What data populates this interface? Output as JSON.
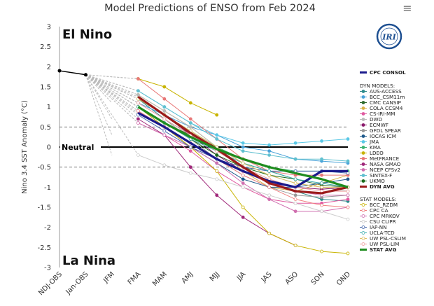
{
  "header": {
    "title": "Model Predictions of ENSO from Feb 2024",
    "menu_icon": "hamburger-menu-icon"
  },
  "logo_text": "IRI",
  "chart_data": {
    "type": "line",
    "title": "Model Predictions of ENSO from Feb 2024",
    "ylabel": "Nino 3.4 SST Anomaly (°C)",
    "xlabel": "",
    "categories": [
      "NDJ-OBS",
      "Jan-OBS",
      "JFM",
      "FMA",
      "MAM",
      "AMJ",
      "MJJ",
      "JJA",
      "JAS",
      "ASO",
      "SON",
      "OND"
    ],
    "ylim": [
      -3,
      3
    ],
    "yticks": [
      "3",
      "2.5",
      "2",
      "1.5",
      "1",
      "0.5",
      "0",
      "-0.5",
      "-1",
      "-1.5",
      "-2",
      "-2.5",
      "-3"
    ],
    "annotations": {
      "el_nino": "El Nino",
      "la_nina": "La Nina",
      "neutral": "Neutral"
    },
    "observed": [
      {
        "x": "NDJ-OBS",
        "y": 1.9
      },
      {
        "x": "Jan-OBS",
        "y": 1.8
      }
    ],
    "legend_headers": {
      "dyn": "DYN MODELS:",
      "stat": "STAT MODELS:"
    },
    "series": [
      {
        "name": "CPC CONSOL",
        "group": "consol",
        "color": "#1a1a8c",
        "style": "thick",
        "values": [
          null,
          null,
          null,
          0.85,
          0.5,
          0.1,
          -0.3,
          -0.6,
          -0.85,
          -1.0,
          -0.6,
          -0.6
        ]
      },
      {
        "name": "AUS-ACCESS",
        "group": "dyn",
        "color": "#2e8b8b",
        "values": [
          null,
          null,
          null,
          1.2,
          0.7,
          0.3,
          0.0,
          -0.5,
          -0.9,
          -1.1,
          -1.3,
          -1.35
        ]
      },
      {
        "name": "BCC_CSM11m",
        "group": "dyn",
        "color": "#4aa3d9",
        "values": [
          null,
          null,
          null,
          1.1,
          0.8,
          0.5,
          0.3,
          0.0,
          -0.1,
          -0.3,
          -0.35,
          -0.4
        ]
      },
      {
        "name": "CMC CANSIP",
        "group": "dyn",
        "color": "#2d6a2d",
        "values": [
          null,
          null,
          null,
          1.0,
          0.6,
          0.3,
          0.0,
          -0.4,
          -0.6,
          -0.8,
          -0.95,
          -1.0
        ]
      },
      {
        "name": "COLA CCSM4",
        "group": "dyn",
        "color": "#d9b24a",
        "values": [
          null,
          null,
          null,
          1.3,
          0.9,
          0.5,
          0.0,
          -0.6,
          -1.0,
          -1.1,
          -0.9,
          -0.7
        ]
      },
      {
        "name": "CS-IRI-MM",
        "group": "dyn",
        "color": "#e05aa0",
        "values": [
          null,
          null,
          null,
          0.6,
          0.3,
          -0.1,
          -0.6,
          -1.0,
          -1.3,
          -1.4,
          -1.4,
          -1.3
        ]
      },
      {
        "name": "DWD",
        "group": "dyn",
        "color": "#bbbbbb",
        "values": [
          null,
          null,
          null,
          1.3,
          0.9,
          0.5,
          0.0,
          -0.4,
          -0.7,
          -0.9,
          -1.0,
          -1.1
        ]
      },
      {
        "name": "ECMWF",
        "group": "dyn",
        "color": "#8b1a6b",
        "values": [
          null,
          null,
          null,
          1.2,
          0.8,
          0.3,
          -0.2,
          -0.6,
          -0.9,
          -1.0,
          -1.05,
          -1.0
        ]
      },
      {
        "name": "GFDL SPEAR",
        "group": "dyn",
        "color": "#999999",
        "values": [
          null,
          null,
          null,
          1.1,
          0.7,
          0.2,
          -0.3,
          -0.7,
          -1.0,
          -1.2,
          -1.25,
          -1.2
        ]
      },
      {
        "name": "IOCAS ICM",
        "group": "dyn",
        "color": "#1f5a8c",
        "values": [
          null,
          null,
          null,
          1.0,
          0.5,
          0.0,
          -0.4,
          -0.8,
          -1.0,
          -1.0,
          -0.9,
          -0.8
        ]
      },
      {
        "name": "JMA",
        "group": "dyn",
        "color": "#5ac8e6",
        "values": [
          null,
          null,
          null,
          1.4,
          1.0,
          0.6,
          0.3,
          0.1,
          0.05,
          0.1,
          0.15,
          0.2
        ]
      },
      {
        "name": "KMA",
        "group": "dyn",
        "color": "#3cb371",
        "values": [
          null,
          null,
          null,
          1.2,
          0.8,
          0.4,
          0.0,
          -0.3,
          -0.5,
          -0.6,
          -0.6,
          -0.6
        ]
      },
      {
        "name": "LDEO",
        "group": "dyn",
        "color": "#c8b400",
        "values": [
          null,
          null,
          null,
          1.7,
          1.5,
          1.1,
          0.8,
          null,
          null,
          null,
          null,
          null
        ]
      },
      {
        "name": "MetFRANCE",
        "group": "dyn",
        "color": "#e87878",
        "values": [
          null,
          null,
          null,
          1.7,
          1.2,
          0.7,
          0.2,
          -0.3,
          -0.6,
          -0.7,
          -0.7,
          -0.7
        ]
      },
      {
        "name": "NASA GMAO",
        "group": "dyn",
        "color": "#a0287a",
        "values": [
          null,
          null,
          null,
          0.7,
          0.3,
          -0.5,
          -1.2,
          -1.75,
          -2.15,
          -2.45,
          null,
          null
        ]
      },
      {
        "name": "NCEP CFSv2",
        "group": "dyn",
        "color": "#d070b0",
        "values": [
          null,
          null,
          null,
          0.9,
          0.5,
          0.0,
          -0.4,
          -0.9,
          -1.3,
          -1.6,
          -1.6,
          -1.5
        ]
      },
      {
        "name": "SINTEX-F",
        "group": "dyn",
        "color": "#60c0d0",
        "values": [
          null,
          null,
          null,
          1.4,
          1.0,
          0.6,
          0.2,
          -0.1,
          -0.2,
          -0.3,
          -0.3,
          -0.35
        ]
      },
      {
        "name": "UKMO",
        "group": "dyn",
        "color": "#1a6b1a",
        "values": [
          null,
          null,
          null,
          1.0,
          0.6,
          0.2,
          -0.2,
          -0.5,
          -0.7,
          -0.8,
          null,
          null
        ]
      },
      {
        "name": "DYN AVG",
        "group": "dynavg",
        "color": "#9b1b1b",
        "style": "thick",
        "values": [
          null,
          null,
          null,
          1.25,
          0.8,
          0.35,
          -0.05,
          -0.5,
          -0.9,
          -1.1,
          -1.15,
          -1.0
        ]
      },
      {
        "name": "BCC_RZDM",
        "group": "stat",
        "color": "#c8b400",
        "values": [
          null,
          null,
          null,
          1.0,
          0.5,
          0.0,
          -0.6,
          -1.5,
          -2.15,
          -2.45,
          -2.6,
          -2.65
        ]
      },
      {
        "name": "CPC CA",
        "group": "stat",
        "color": "#f08080",
        "values": [
          null,
          null,
          null,
          0.9,
          0.5,
          0.1,
          -0.3,
          -0.7,
          -1.0,
          -1.3,
          -1.45,
          -1.5
        ]
      },
      {
        "name": "CPC MRKOV",
        "group": "stat",
        "color": "#d070b0",
        "values": [
          null,
          null,
          null,
          0.6,
          0.3,
          0.0,
          -0.3,
          -0.6,
          -0.9,
          -1.1,
          -1.2,
          -1.2
        ]
      },
      {
        "name": "CSU CLIPR",
        "group": "stat",
        "color": "#cccccc",
        "values": [
          null,
          null,
          null,
          -0.2,
          -0.45,
          -0.65,
          -0.8,
          -1.0,
          -1.2,
          -1.4,
          -1.6,
          -1.8
        ]
      },
      {
        "name": "IAP-NN",
        "group": "stat",
        "color": "#4466aa",
        "values": [
          null,
          null,
          null,
          0.8,
          0.4,
          0.0,
          -0.3,
          -0.5,
          -0.6,
          -0.6,
          -0.6,
          -0.65
        ]
      },
      {
        "name": "UCLA-TCD",
        "group": "stat",
        "color": "#40b0b0",
        "values": [
          null,
          null,
          null,
          1.0,
          0.6,
          0.2,
          -0.1,
          -0.4,
          -0.6,
          -0.8,
          -0.9,
          -1.0
        ]
      },
      {
        "name": "UW PSL-CSLIM",
        "group": "stat",
        "color": "#e0c060",
        "values": [
          null,
          null,
          null,
          1.2,
          0.8,
          0.4,
          0.0,
          -0.4,
          -0.7,
          -0.9,
          -1.0,
          -1.0
        ]
      },
      {
        "name": "UW PSL-LIM",
        "group": "stat",
        "color": "#f0a0a0",
        "values": [
          null,
          null,
          null,
          1.1,
          0.7,
          0.3,
          -0.1,
          -0.5,
          -0.8,
          -1.0,
          -1.1,
          -1.1
        ]
      },
      {
        "name": "STAT AVG",
        "group": "statavg",
        "color": "#1e8c1e",
        "style": "thick",
        "values": [
          null,
          null,
          null,
          1.0,
          0.6,
          0.25,
          -0.05,
          -0.3,
          -0.5,
          -0.65,
          -0.8,
          -1.0
        ]
      }
    ],
    "grid": false,
    "legend_placement": "right"
  }
}
